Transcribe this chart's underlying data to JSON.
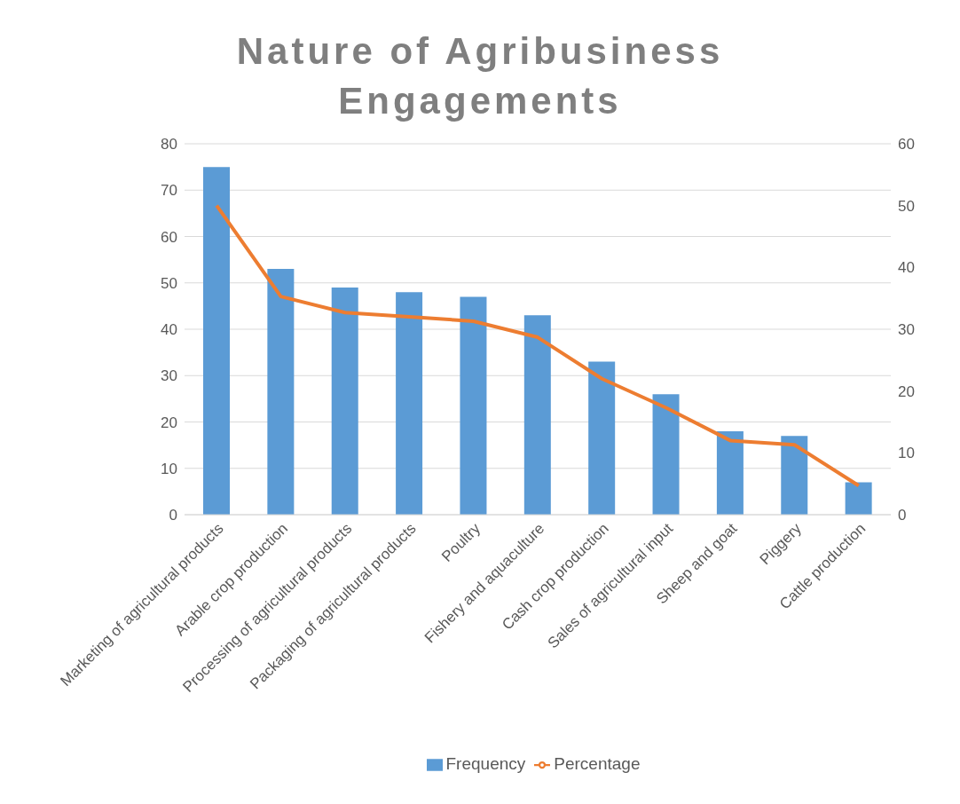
{
  "chart_data": {
    "type": "bar",
    "title": "Nature of Agribusiness Engagements",
    "categories": [
      "Marketing of agricultural products",
      "Arable crop production",
      "Processing of agricultural products",
      "Packaging of agricultural products",
      "Poultry",
      "Fishery and aquaculture",
      "Cash crop production",
      "Sales of agricultural input",
      "Sheep and goat",
      "Piggery",
      "Cattle production"
    ],
    "series": [
      {
        "name": "Frequency",
        "color": "#5b9bd5",
        "values": [
          75,
          53,
          49,
          48,
          47,
          43,
          33,
          26,
          18,
          17,
          7
        ]
      },
      {
        "name": "Percentage",
        "type": "line",
        "axis": "y2",
        "color": "#ed7d31",
        "values": [
          50,
          35.3,
          32.7,
          32,
          31.3,
          28.7,
          22,
          17.3,
          12,
          11.3,
          4.7
        ]
      }
    ],
    "ylim": [
      0,
      80
    ],
    "yticks": [
      0,
      10,
      20,
      30,
      40,
      50,
      60,
      70,
      80
    ],
    "y2lim": [
      0,
      60
    ],
    "y2ticks": [
      0,
      10,
      20,
      30,
      40,
      50,
      60
    ],
    "grid": "y",
    "legend": "bottom",
    "marker": "none"
  }
}
